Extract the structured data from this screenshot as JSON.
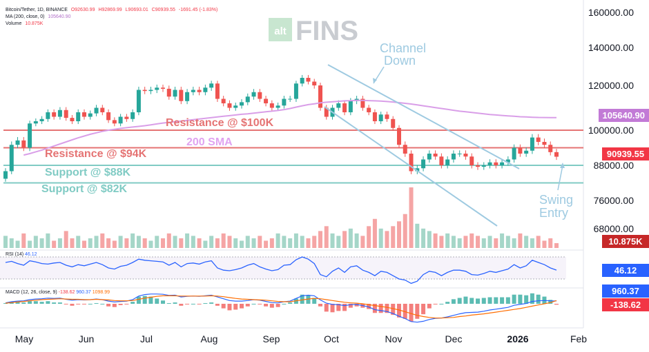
{
  "header": {
    "symbol": "Bitcoin/Tether, 1D, BINANCE",
    "open": "O92630.99",
    "high": "H92869.99",
    "low": "L90693.01",
    "close": "C90939.55",
    "change": "-1691.45 (-1.83%)",
    "ma_label": "MA (200, close, 0)",
    "ma_value": "105640.90",
    "volume_label": "Volume",
    "volume_value": "10.875K"
  },
  "logo": {
    "alt": "alt",
    "fins": "FINS"
  },
  "rsi_header": {
    "label": "RSI (14)",
    "value": "46.12"
  },
  "macd_header": {
    "label": "MACD (12, 26, close, 9)",
    "hist": "-138.62",
    "macd": "960.37",
    "signal": "1098.99"
  },
  "badges": {
    "ma": "105640.90",
    "price": "90939.55",
    "volume": "10.875K",
    "rsi": "46.12",
    "macd": "960.37",
    "hist": "-138.62"
  },
  "colors": {
    "up": "#26a69a",
    "down": "#ef5350",
    "ma": "#d99ee8",
    "rsi": "#2962ff",
    "macd": "#2962ff",
    "signal": "#ff6d00",
    "resistance": "#e57373",
    "support": "#80cbc4",
    "channel": "#9ecae1"
  },
  "annotations": {
    "channel": "Channel\nDown",
    "res100": "Resistance @ $100K",
    "res94": "Resistance @ $94K",
    "sma": "200 SMA",
    "sup88": "Support @ $88K",
    "sup82": "Support @ $82K",
    "swing": "Swing\nEntry"
  },
  "chart_data": {
    "type": "candlestick",
    "price_axis_ticks": [
      "160000.00",
      "140000.00",
      "120000.00",
      "100000.00",
      "88000.00",
      "76000.00",
      "68000.00"
    ],
    "price_axis_values": [
      160000,
      140000,
      120000,
      100000,
      88000,
      76000,
      68000
    ],
    "x_axis_labels": [
      "May",
      "Jun",
      "Jul",
      "Aug",
      "Sep",
      "Oct",
      "Nov",
      "Dec",
      "2026",
      "Feb"
    ],
    "levels": {
      "resistance_100k": 100000,
      "resistance_94k": 94000,
      "support_88k": 88000,
      "support_82k": 82000
    },
    "closes": [
      86000,
      95000,
      96500,
      94000,
      103000,
      104000,
      105000,
      108000,
      106000,
      109000,
      105500,
      104000,
      108000,
      106000,
      107500,
      110000,
      108000,
      104500,
      103000,
      106000,
      105000,
      108000,
      118000,
      117500,
      118000,
      119000,
      118500,
      115000,
      118000,
      113000,
      117000,
      118000,
      117000,
      119000,
      121000,
      114000,
      112000,
      110000,
      111000,
      112500,
      115000,
      117000,
      114000,
      112000,
      110000,
      111000,
      114000,
      114000,
      121000,
      124000,
      122000,
      120000,
      110000,
      106000,
      110000,
      112000,
      108000,
      113000,
      114000,
      110000,
      108000,
      104000,
      107000,
      105000,
      101000,
      95000,
      92000,
      86000,
      87000,
      90000,
      92000,
      91000,
      88000,
      90000,
      92000,
      92000,
      91000,
      88000,
      87500,
      88000,
      89000,
      88000,
      89000,
      90000,
      94000,
      92000,
      93000,
      97500,
      96000,
      95000,
      92500,
      90939.55
    ],
    "ma200": [
      null,
      null,
      null,
      91500,
      92000,
      92600,
      93200,
      93900,
      94600,
      95300,
      96000,
      96700,
      97400,
      98000,
      98600,
      99100,
      99600,
      100000,
      100400,
      100800,
      101100,
      101400,
      101700,
      102000,
      102400,
      102800,
      103200,
      103500,
      103800,
      104100,
      104400,
      104700,
      105000,
      105300,
      105600,
      105900,
      106200,
      106500,
      106800,
      107100,
      107300,
      107600,
      107900,
      108200,
      108500,
      108800,
      109200,
      109700,
      110300,
      110900,
      111400,
      111800,
      112200,
      112500,
      112700,
      112900,
      113100,
      113200,
      113300,
      113300,
      113200,
      113100,
      113000,
      112800,
      112600,
      112300,
      112000,
      111700,
      111300,
      110900,
      110500,
      110100,
      109700,
      109300,
      108900,
      108500,
      108200,
      107900,
      107600,
      107300,
      107000,
      106800,
      106600,
      106400,
      106200,
      106000,
      105900,
      105800,
      105700,
      105660,
      105645,
      105640.9
    ],
    "volume": [
      5,
      4,
      3,
      6,
      3,
      5,
      4,
      6,
      3,
      4,
      7,
      4,
      5,
      3,
      4,
      5,
      6,
      4,
      3,
      5,
      4,
      6,
      5,
      4,
      3,
      5,
      4,
      6,
      5,
      4,
      6,
      5,
      4,
      3,
      5,
      4,
      6,
      5,
      4,
      3,
      5,
      4,
      5,
      3,
      4,
      6,
      5,
      4,
      6,
      5,
      4,
      5,
      7,
      9,
      6,
      5,
      7,
      8,
      6,
      5,
      9,
      12,
      8,
      7,
      9,
      11,
      14,
      25,
      10,
      8,
      7,
      6,
      5,
      6,
      5,
      4,
      5,
      6,
      5,
      4,
      5,
      4,
      6,
      5,
      4,
      6,
      5,
      4,
      5,
      3,
      4,
      2
    ],
    "volume_current": "10.875K",
    "rsi": [
      60,
      62,
      58,
      55,
      63,
      61,
      58,
      57,
      59,
      60,
      55,
      52,
      56,
      54,
      57,
      60,
      56,
      50,
      48,
      53,
      55,
      60,
      66,
      64,
      63,
      62,
      61,
      55,
      60,
      52,
      58,
      59,
      57,
      61,
      63,
      50,
      46,
      45,
      47,
      50,
      55,
      58,
      52,
      48,
      45,
      47,
      55,
      56,
      65,
      70,
      66,
      58,
      38,
      34,
      44,
      50,
      42,
      52,
      54,
      46,
      42,
      36,
      44,
      42,
      36,
      30,
      28,
      22,
      26,
      38,
      44,
      42,
      36,
      42,
      46,
      46,
      44,
      38,
      37,
      40,
      44,
      42,
      45,
      48,
      56,
      50,
      54,
      64,
      60,
      56,
      50,
      46.12
    ],
    "rsi_current": 46.12,
    "macd": [
      300,
      700,
      900,
      1000,
      1400,
      1600,
      1700,
      1900,
      1800,
      1900,
      1500,
      1200,
      1400,
      1300,
      1400,
      1600,
      1400,
      900,
      600,
      800,
      900,
      1400,
      2600,
      3100,
      3300,
      3300,
      3200,
      2800,
      2900,
      2300,
      2500,
      2600,
      2500,
      2700,
      2900,
      2300,
      1700,
      1100,
      900,
      900,
      1100,
      1400,
      1200,
      800,
      400,
      300,
      700,
      900,
      1800,
      2700,
      2900,
      2700,
      1300,
      200,
      -200,
      -300,
      -600,
      -300,
      -200,
      -600,
      -1100,
      -2000,
      -2300,
      -2600,
      -3300,
      -4200,
      -5000,
      -6000,
      -6200,
      -5900,
      -5300,
      -4900,
      -4800,
      -4400,
      -3900,
      -3400,
      -3000,
      -2900,
      -2800,
      -2500,
      -2100,
      -1800,
      -1500,
      -1200,
      -500,
      -200,
      100,
      800,
      1000,
      1100,
      1000,
      960.37
    ],
    "signal": [
      200,
      400,
      600,
      800,
      1000,
      1200,
      1400,
      1500,
      1600,
      1700,
      1600,
      1500,
      1500,
      1400,
      1400,
      1500,
      1400,
      1300,
      1100,
      1000,
      1000,
      1100,
      1500,
      1900,
      2200,
      2500,
      2700,
      2700,
      2700,
      2600,
      2600,
      2600,
      2600,
      2600,
      2700,
      2600,
      2400,
      2100,
      1800,
      1600,
      1500,
      1400,
      1300,
      1200,
      1000,
      800,
      700,
      700,
      1000,
      1300,
      1600,
      1800,
      1700,
      1400,
      1100,
      800,
      500,
      300,
      200,
      0,
      -300,
      -600,
      -900,
      -1200,
      -1600,
      -2100,
      -2700,
      -3300,
      -3900,
      -4300,
      -4600,
      -4800,
      -4800,
      -4700,
      -4600,
      -4300,
      -4100,
      -3800,
      -3600,
      -3400,
      -3100,
      -2800,
      -2500,
      -2200,
      -1900,
      -1600,
      -1200,
      -800,
      -400,
      0,
      400,
      1098.99
    ],
    "macd_hist_current": -138.62,
    "macd_current": 960.37,
    "signal_current": 1098.99
  }
}
